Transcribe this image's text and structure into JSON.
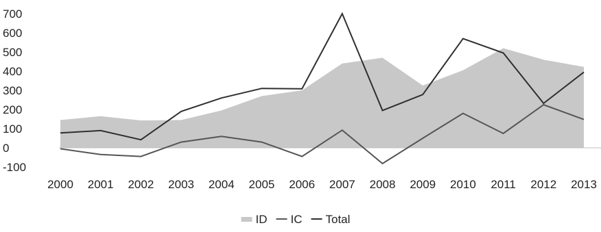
{
  "chart_data": {
    "type": "area",
    "categories": [
      "2000",
      "2001",
      "2002",
      "2003",
      "2004",
      "2005",
      "2006",
      "2007",
      "2008",
      "2009",
      "2010",
      "2011",
      "2012",
      "2013"
    ],
    "series": [
      {
        "name": "ID",
        "kind": "area",
        "color": "#c8c8c8",
        "values": [
          145,
          165,
          143,
          145,
          195,
          270,
          300,
          440,
          470,
          325,
          405,
          520,
          460,
          422
        ]
      },
      {
        "name": "IC",
        "kind": "line",
        "color": "#555555",
        "values": [
          -5,
          -35,
          -45,
          30,
          60,
          30,
          -45,
          92,
          -82,
          50,
          180,
          75,
          225,
          148
        ]
      },
      {
        "name": "Total",
        "kind": "line",
        "color": "#2f2f2f",
        "values": [
          78,
          90,
          42,
          190,
          260,
          310,
          308,
          700,
          195,
          278,
          570,
          495,
          232,
          395
        ]
      }
    ],
    "ylim": [
      -100,
      700
    ],
    "yticks": [
      -100,
      0,
      100,
      200,
      300,
      400,
      500,
      600,
      700
    ],
    "title": "",
    "xlabel": "",
    "ylabel": "",
    "grid": false,
    "legend_position": "bottom"
  }
}
